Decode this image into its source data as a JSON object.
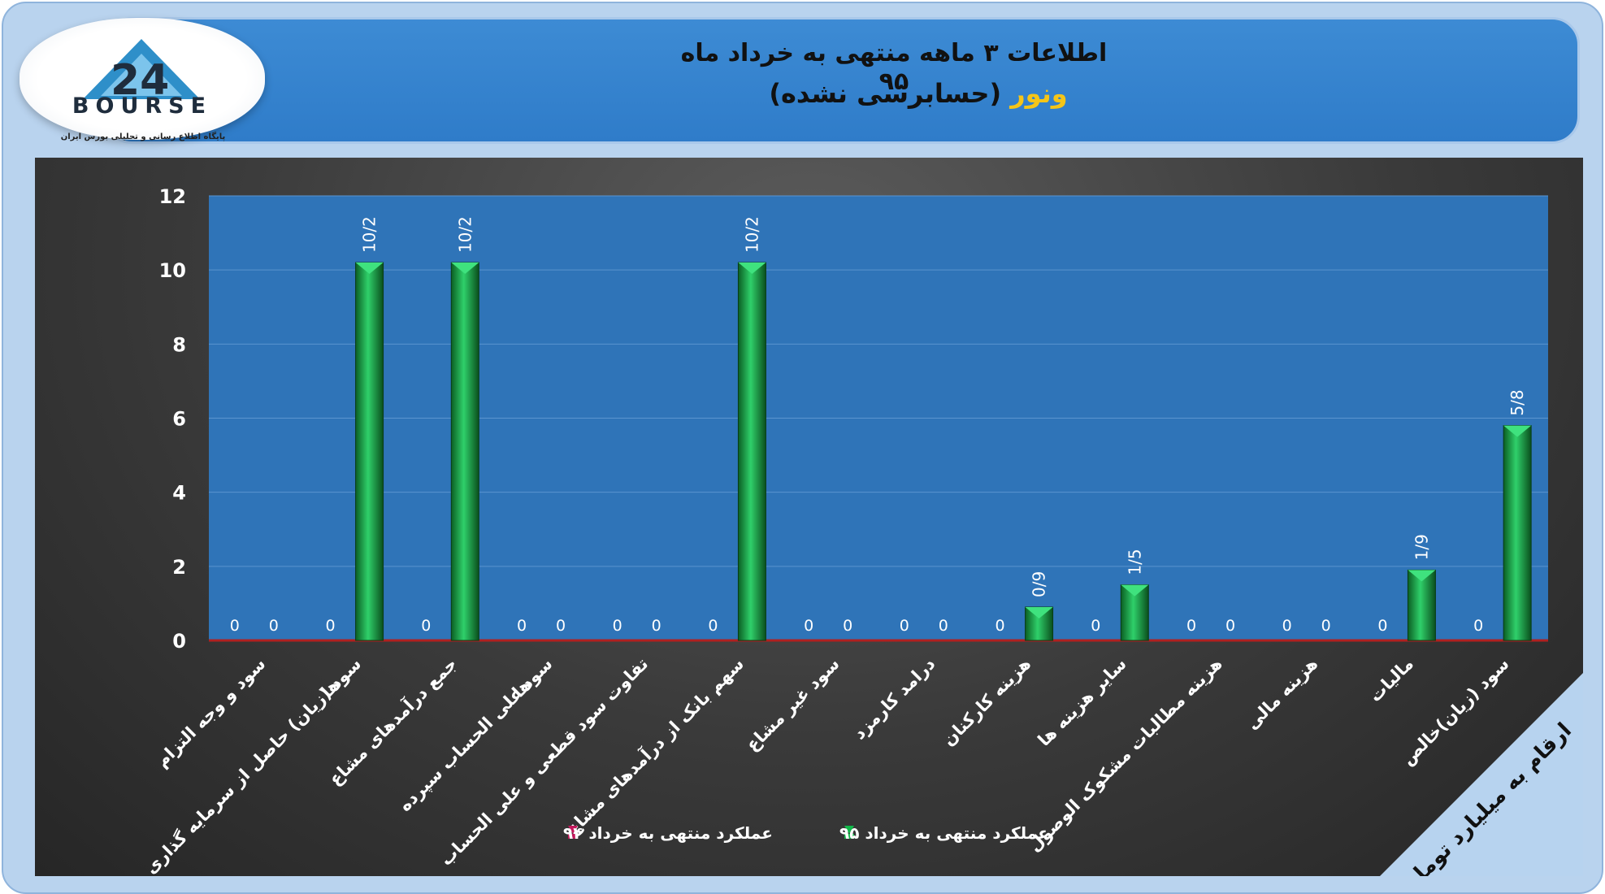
{
  "header": {
    "title": "اطلاعات ۳ ماهه منتهی به خرداد ماه ۹۵",
    "company": "ونور",
    "note": "(حسابرسی نشده)"
  },
  "logo": {
    "text": "BOURSE",
    "subtitle": "پایگاه اطلاع رسانی و تحلیلی بورس ایران",
    "colors": {
      "mark": "#2e8fc9",
      "text": "#1f2d3d"
    }
  },
  "unit_label": "ارقام به میلیارد تومان",
  "chart_data": {
    "type": "bar",
    "ylim": [
      0,
      12
    ],
    "yticks": [
      "0",
      "2",
      "4",
      "6",
      "8",
      "10",
      "12"
    ],
    "grid": true,
    "legend_position": "bottom",
    "categories": [
      [
        "سود و وجه التزام"
      ],
      [
        "سود (زیان) حاصل از سرمایه گذاری",
        "ها"
      ],
      [
        "جمع درآمدهای مشاع"
      ],
      [
        "سود علی الحساب سپرده",
        "ها"
      ],
      [
        "تفاوت سود قطعی و علی الحساب"
      ],
      [
        "سهم بانک از درآمدهای مشاع"
      ],
      [
        "سود غیر مشاع"
      ],
      [
        "درامد کارمزد"
      ],
      [
        "هزینه کارکنان"
      ],
      [
        "سایر هزینه ها"
      ],
      [
        "هزینه مطالبات مشکوک الوصول"
      ],
      [
        "هزینه مالی"
      ],
      [
        "مالیات"
      ],
      [
        "سود (زیان)خالص"
      ]
    ],
    "series": [
      {
        "name": "عملکرد منتهی به خرداد ۹۴",
        "color": "#c2185b",
        "values": [
          0,
          0,
          0,
          0,
          0,
          0,
          0,
          0,
          0,
          0,
          0,
          0,
          0,
          0
        ],
        "labels": [
          "0",
          "0",
          "0",
          "0",
          "0",
          "0",
          "0",
          "0",
          "0",
          "0",
          "0",
          "0",
          "0",
          "0"
        ]
      },
      {
        "name": "عملکرد منتهی به خرداد ۹۵",
        "color": "#12b84a",
        "values": [
          0,
          10.2,
          10.2,
          0,
          0,
          10.2,
          0,
          0,
          0.9,
          1.5,
          0,
          0,
          1.9,
          5.8
        ],
        "labels": [
          "0",
          "10/2",
          "10/2",
          "0",
          "0",
          "10/2",
          "0",
          "0",
          "0/9",
          "1/5",
          "0",
          "0",
          "1/9",
          "5/8"
        ]
      }
    ]
  }
}
